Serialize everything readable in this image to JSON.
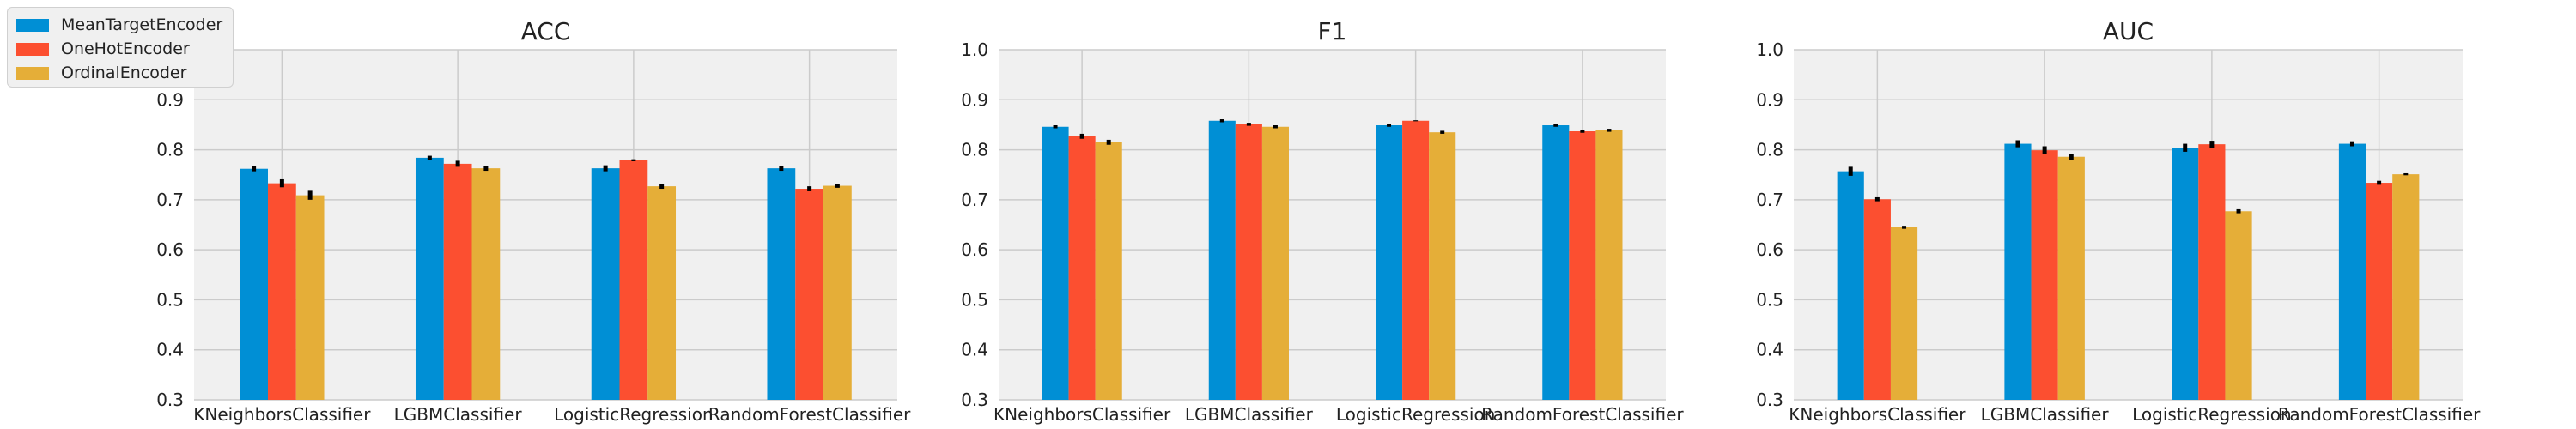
{
  "chart_data": [
    {
      "type": "bar",
      "title": "ACC",
      "categories": [
        "KNeighborsClassifier",
        "LGBMClassifier",
        "LogisticRegression",
        "RandomForestClassifier"
      ],
      "ylim": [
        0.3,
        1.0
      ],
      "yticks": [
        "0.3",
        "0.4",
        "0.5",
        "0.6",
        "0.7",
        "0.8",
        "0.9",
        "1.0"
      ],
      "grid": true,
      "series": [
        {
          "name": "MeanTargetEncoder",
          "values": [
            0.762,
            0.784,
            0.763,
            0.763
          ],
          "errors": [
            0.005,
            0.004,
            0.006,
            0.005
          ]
        },
        {
          "name": "OneHotEncoder",
          "values": [
            0.733,
            0.772,
            0.779,
            0.722
          ],
          "errors": [
            0.008,
            0.006,
            0.002,
            0.005
          ]
        },
        {
          "name": "OrdinalEncoder",
          "values": [
            0.709,
            0.763,
            0.727,
            0.728
          ],
          "errors": [
            0.009,
            0.005,
            0.005,
            0.004
          ]
        }
      ]
    },
    {
      "type": "bar",
      "title": "F1",
      "categories": [
        "KNeighborsClassifier",
        "LGBMClassifier",
        "LogisticRegression",
        "RandomForestClassifier"
      ],
      "ylim": [
        0.3,
        1.0
      ],
      "yticks": [
        "0.3",
        "0.4",
        "0.5",
        "0.6",
        "0.7",
        "0.8",
        "0.9",
        "1.0"
      ],
      "grid": true,
      "series": [
        {
          "name": "MeanTargetEncoder",
          "values": [
            0.846,
            0.858,
            0.849,
            0.849
          ],
          "errors": [
            0.003,
            0.003,
            0.003,
            0.003
          ]
        },
        {
          "name": "OneHotEncoder",
          "values": [
            0.827,
            0.851,
            0.858,
            0.837
          ],
          "errors": [
            0.005,
            0.003,
            0.001,
            0.003
          ]
        },
        {
          "name": "OrdinalEncoder",
          "values": [
            0.815,
            0.846,
            0.835,
            0.839
          ],
          "errors": [
            0.005,
            0.003,
            0.003,
            0.003
          ]
        }
      ]
    },
    {
      "type": "bar",
      "title": "AUC",
      "categories": [
        "KNeighborsClassifier",
        "LGBMClassifier",
        "LogisticRegression",
        "RandomForestClassifier"
      ],
      "ylim": [
        0.3,
        1.0
      ],
      "yticks": [
        "0.3",
        "0.4",
        "0.5",
        "0.6",
        "0.7",
        "0.8",
        "0.9",
        "1.0"
      ],
      "grid": true,
      "series": [
        {
          "name": "MeanTargetEncoder",
          "values": [
            0.757,
            0.812,
            0.804,
            0.812
          ],
          "errors": [
            0.009,
            0.007,
            0.008,
            0.005
          ]
        },
        {
          "name": "OneHotEncoder",
          "values": [
            0.701,
            0.799,
            0.811,
            0.734
          ],
          "errors": [
            0.004,
            0.008,
            0.007,
            0.004
          ]
        },
        {
          "name": "OrdinalEncoder",
          "values": [
            0.645,
            0.786,
            0.677,
            0.751
          ],
          "errors": [
            0.003,
            0.006,
            0.004,
            0.002
          ]
        }
      ]
    }
  ],
  "legend": {
    "placement": "top-left",
    "items": [
      {
        "label": "MeanTargetEncoder",
        "color": "#008fd5"
      },
      {
        "label": "OneHotEncoder",
        "color": "#fc4f30"
      },
      {
        "label": "OrdinalEncoder",
        "color": "#e5ae38"
      }
    ]
  },
  "colors": {
    "plot_background": "#f0f0f0",
    "grid": "#cbcbcb",
    "error_bar": "#000000",
    "text": "#222222"
  }
}
